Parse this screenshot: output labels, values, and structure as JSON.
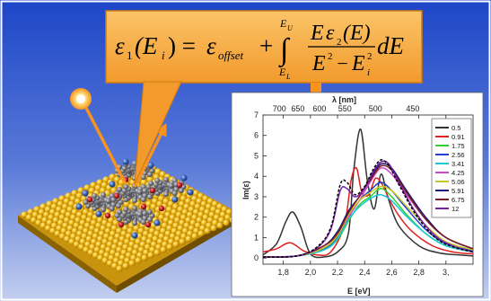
{
  "colors": {
    "background_top": "#1d46c8",
    "background_bottom": "#b6c6ee",
    "formula_box": "#f4a63a",
    "arrow": "#f7931e",
    "gold": "#e8b418",
    "molecule_gray": "#7a7a80",
    "molecule_red": "#b81d24",
    "molecule_blue": "#3a63b8"
  },
  "formula": {
    "lhs": "ε",
    "lhs_sub": "1",
    "lhs_arg": "(E",
    "lhs_arg_sub": "i",
    "lhs_close": ") = ",
    "offset_symbol": "ε",
    "offset_sub": "offset",
    "plus": "+",
    "integral": "∫",
    "upper_limit": "E",
    "upper_sub": "U",
    "lower_limit": "E",
    "lower_sub": "L",
    "num_E": "E",
    "num_eps": "ε",
    "num_sub": "2",
    "num_arg": "(E)",
    "den_E1": "E",
    "den_sup1": "2",
    "den_minus": " − ",
    "den_E2": "E",
    "den_sup2": "2",
    "den_sub2": "i",
    "differential": "dE"
  },
  "chart_data": {
    "type": "line",
    "top_axis_label": "λ [nm]",
    "top_ticks": [
      "700",
      "650",
      "600",
      "550",
      "500",
      "450"
    ],
    "xlabel": "E [eV]",
    "ylabel": "Im(ε)",
    "xlim": [
      1.65,
      3.2
    ],
    "ylim": [
      -0.3,
      7
    ],
    "x_ticks": [
      "1,8",
      "2,0",
      "2,2",
      "2,4",
      "2,6",
      "2,8",
      "3,"
    ],
    "y_ticks": [
      "0",
      "1",
      "2",
      "3",
      "4",
      "5",
      "6",
      "7"
    ],
    "legend_position": "right",
    "series": [
      {
        "name": "0.5",
        "color": "#333333",
        "dash": false,
        "x": [
          1.65,
          1.75,
          1.82,
          1.87,
          1.93,
          2.0,
          2.1,
          2.2,
          2.28,
          2.32,
          2.37,
          2.42,
          2.47,
          2.52,
          2.57,
          2.65,
          2.8,
          2.95,
          3.1,
          3.2
        ],
        "y": [
          0.15,
          0.7,
          1.8,
          2.25,
          1.5,
          0.2,
          0.05,
          0.3,
          1.2,
          4.3,
          6.3,
          3.8,
          2.4,
          4.1,
          3.0,
          1.6,
          0.6,
          0.25,
          0.15,
          0.1
        ]
      },
      {
        "name": "0.91",
        "color": "#e02020",
        "dash": false,
        "x": [
          1.65,
          1.75,
          1.85,
          1.95,
          2.05,
          2.15,
          2.25,
          2.3,
          2.34,
          2.38,
          2.43,
          2.48,
          2.53,
          2.58,
          2.65,
          2.75,
          2.9,
          3.05,
          3.2
        ],
        "y": [
          0.3,
          0.45,
          0.75,
          0.35,
          0.15,
          0.3,
          1.6,
          3.8,
          4.4,
          3.2,
          3.1,
          3.9,
          3.6,
          2.9,
          2.1,
          1.3,
          0.6,
          0.3,
          0.2
        ]
      },
      {
        "name": "1.75",
        "color": "#2fd02f",
        "dash": false,
        "x": [
          1.65,
          1.9,
          2.1,
          2.2,
          2.28,
          2.36,
          2.44,
          2.52,
          2.6,
          2.7,
          2.85,
          3.0,
          3.2
        ],
        "y": [
          0.05,
          0.1,
          0.4,
          0.9,
          1.8,
          2.6,
          3.0,
          3.4,
          3.0,
          2.2,
          1.2,
          0.6,
          0.3
        ]
      },
      {
        "name": "2.56",
        "color": "#1f3fd0",
        "dash": false,
        "x": [
          1.65,
          1.9,
          2.1,
          2.2,
          2.28,
          2.36,
          2.44,
          2.52,
          2.6,
          2.7,
          2.85,
          3.0,
          3.2
        ],
        "y": [
          0.05,
          0.1,
          0.45,
          1.0,
          2.0,
          2.8,
          3.3,
          3.7,
          3.3,
          2.5,
          1.4,
          0.7,
          0.35
        ]
      },
      {
        "name": "3.41",
        "color": "#18c8d8",
        "dash": false,
        "x": [
          1.65,
          1.9,
          2.1,
          2.2,
          2.28,
          2.36,
          2.44,
          2.52,
          2.6,
          2.7,
          2.85,
          3.0,
          3.2
        ],
        "y": [
          0.05,
          0.1,
          0.4,
          0.95,
          1.9,
          2.5,
          2.9,
          3.1,
          2.8,
          2.1,
          1.2,
          0.6,
          0.3
        ]
      },
      {
        "name": "4.25",
        "color": "#d048d0",
        "dash": false,
        "x": [
          1.65,
          1.9,
          2.1,
          2.2,
          2.28,
          2.36,
          2.44,
          2.52,
          2.6,
          2.7,
          2.85,
          3.0,
          3.2
        ],
        "y": [
          0.05,
          0.1,
          0.5,
          1.1,
          2.0,
          2.8,
          3.7,
          4.4,
          4.1,
          3.2,
          1.9,
          1.0,
          0.45
        ]
      },
      {
        "name": "5.06",
        "color": "#c8c820",
        "dash": false,
        "x": [
          1.65,
          1.9,
          2.1,
          2.2,
          2.28,
          2.36,
          2.44,
          2.52,
          2.6,
          2.7,
          2.85,
          3.0,
          3.2
        ],
        "y": [
          0.05,
          0.1,
          0.5,
          1.1,
          2.1,
          2.8,
          3.2,
          3.5,
          3.3,
          2.6,
          1.6,
          0.8,
          0.4
        ]
      },
      {
        "name": "5.91",
        "color": "#1a1a7a",
        "dash": false,
        "x": [
          1.65,
          1.9,
          2.1,
          2.2,
          2.28,
          2.36,
          2.44,
          2.52,
          2.6,
          2.7,
          2.85,
          3.0,
          3.2
        ],
        "y": [
          0.05,
          0.1,
          0.6,
          1.3,
          2.3,
          3.0,
          3.9,
          4.6,
          4.4,
          3.4,
          2.0,
          1.0,
          0.45
        ]
      },
      {
        "name": "6.75",
        "color": "#7a1f1f",
        "dash": false,
        "x": [
          1.65,
          1.9,
          2.1,
          2.2,
          2.28,
          2.36,
          2.44,
          2.52,
          2.6,
          2.7,
          2.85,
          3.0,
          3.2
        ],
        "y": [
          0.05,
          0.1,
          0.6,
          1.2,
          2.2,
          3.0,
          3.8,
          4.5,
          4.3,
          3.3,
          1.9,
          1.0,
          0.45
        ]
      },
      {
        "name": "12",
        "color": "#7a1fa8",
        "dash": false,
        "x": [
          1.65,
          1.9,
          2.05,
          2.15,
          2.22,
          2.27,
          2.33,
          2.4,
          2.46,
          2.52,
          2.58,
          2.66,
          2.78,
          2.92,
          3.05,
          3.2
        ],
        "y": [
          0.05,
          0.1,
          0.5,
          1.4,
          3.3,
          3.4,
          3.0,
          3.4,
          4.2,
          4.7,
          4.6,
          3.6,
          2.2,
          1.1,
          0.6,
          0.3
        ]
      },
      {
        "name": "",
        "color": "#000000",
        "dash": true,
        "x": [
          1.65,
          1.9,
          2.05,
          2.15,
          2.22,
          2.27,
          2.33,
          2.4,
          2.46,
          2.52,
          2.58,
          2.66,
          2.78,
          2.92,
          3.05,
          3.2
        ],
        "y": [
          0.05,
          0.1,
          0.55,
          1.5,
          3.6,
          3.7,
          3.1,
          3.5,
          4.3,
          4.8,
          4.5,
          3.5,
          2.1,
          1.0,
          0.55,
          0.3
        ]
      }
    ]
  }
}
